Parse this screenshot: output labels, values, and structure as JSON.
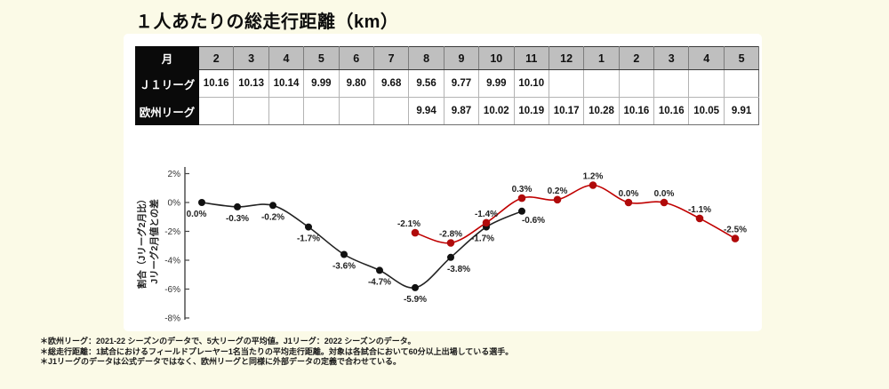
{
  "page": {
    "title": "１人あたりの総走行距離（km）",
    "background_color": "#FBFAE7",
    "panel_color": "#FFFFFF"
  },
  "table": {
    "corner_label": "月",
    "months": [
      "2",
      "3",
      "4",
      "5",
      "6",
      "7",
      "8",
      "9",
      "10",
      "11",
      "12",
      "1",
      "2",
      "3",
      "4",
      "5"
    ],
    "rows": [
      {
        "label": "Ｊ１リーグ",
        "values": [
          "10.16",
          "10.13",
          "10.14",
          "9.99",
          "9.80",
          "9.68",
          "9.56",
          "9.77",
          "9.99",
          "10.10",
          "",
          "",
          "",
          "",
          "",
          ""
        ]
      },
      {
        "label": "欧州リーグ",
        "values": [
          "",
          "",
          "",
          "",
          "",
          "",
          "9.94",
          "9.87",
          "10.02",
          "10.19",
          "10.17",
          "10.28",
          "10.16",
          "10.16",
          "10.05",
          "9.91"
        ]
      }
    ],
    "header_bg": "#BFBFBF",
    "label_bg": "#0A0A0A"
  },
  "chart_data": {
    "type": "line",
    "x_months": [
      "2",
      "3",
      "4",
      "5",
      "6",
      "7",
      "8",
      "9",
      "10",
      "11",
      "12",
      "1",
      "2",
      "3",
      "4",
      "5"
    ],
    "ylabel_line1": "割合（Jリーグ2月比）",
    "ylabel_line2": "Jリーグ2月値との差",
    "yticks": [
      2,
      0,
      -2,
      -4,
      -6,
      -8
    ],
    "ytick_labels": [
      "2%",
      "0%",
      "-2%",
      "-4%",
      "-6%",
      "-8%"
    ],
    "ylim": [
      -8,
      2
    ],
    "grid": false,
    "legend": "none",
    "series": [
      {
        "name": "J1リーグ",
        "color": "#222222",
        "marker_color": "#111111",
        "start_index": 0,
        "months": [
          "2",
          "3",
          "4",
          "5",
          "6",
          "7",
          "8",
          "9",
          "10",
          "11"
        ],
        "values": [
          0.0,
          -0.3,
          -0.2,
          -1.7,
          -3.6,
          -4.7,
          -5.9,
          -3.8,
          -1.7,
          -0.6
        ],
        "labels": [
          "0.0%",
          "-0.3%",
          "-0.2%",
          "-1.7%",
          "-3.6%",
          "-4.7%",
          "-5.9%",
          "-3.8%",
          "-1.7%",
          "-0.6%"
        ],
        "label_position": "below"
      },
      {
        "name": "欧州リーグ",
        "color": "#C00000",
        "marker_color": "#B00A0A",
        "start_index": 6,
        "months": [
          "8",
          "9",
          "10",
          "11",
          "12",
          "1",
          "2",
          "3",
          "4",
          "5"
        ],
        "values": [
          -2.1,
          -2.8,
          -1.4,
          0.3,
          0.2,
          1.2,
          0.0,
          0.0,
          -1.1,
          -2.5
        ],
        "labels": [
          "-2.1%",
          "-2.8%",
          "-1.4%",
          "0.3%",
          "0.2%",
          "1.2%",
          "0.0%",
          "0.0%",
          "-1.1%",
          "-2.5%"
        ],
        "label_position": "above"
      }
    ]
  },
  "footnotes": {
    "line1": "＊欧州リーグ：2021-22 シーズンのデータで、5大リーグの平均値。J1リーグ：2022 シーズンのデータ。",
    "line2": "＊総走行距離：1試合におけるフィールドプレーヤー1名当たりの平均走行距離。対象は各試合において60分以上出場している選手。",
    "line3": "＊J1リーグのデータは公式データではなく、欧州リーグと同様に外部データの定義で合わせている。"
  }
}
